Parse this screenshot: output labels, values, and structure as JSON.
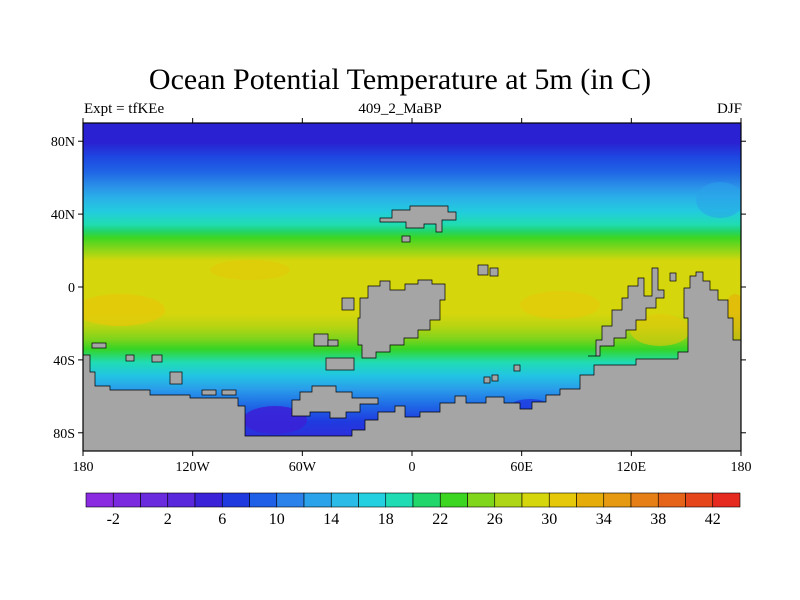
{
  "title": "Ocean Potential Temperature at 5m (in C)",
  "subtitle_left": "Expt = tfKEe",
  "subtitle_center": "409_2_MaBP",
  "subtitle_right": "DJF",
  "map": {
    "projection": "cylindrical-equidistant",
    "lon_range": [
      -180,
      180
    ],
    "lat_range": [
      -90,
      90
    ],
    "land_color": "#a5a5a5",
    "lat_ticks": [
      {
        "value": 80,
        "label": "80N"
      },
      {
        "value": 40,
        "label": "40N"
      },
      {
        "value": 0,
        "label": "0"
      },
      {
        "value": -40,
        "label": "40S"
      },
      {
        "value": -80,
        "label": "80S"
      }
    ],
    "lon_ticks": [
      {
        "value": -180,
        "label": "180"
      },
      {
        "value": -120,
        "label": "120W"
      },
      {
        "value": -60,
        "label": "60W"
      },
      {
        "value": 0,
        "label": "0"
      },
      {
        "value": 60,
        "label": "60E"
      },
      {
        "value": 120,
        "label": "120E"
      },
      {
        "value": 180,
        "label": "180"
      }
    ]
  },
  "colorbar": {
    "min": -4,
    "max": 44,
    "step": 2,
    "colors": [
      "#8a2be2",
      "#7b2ae0",
      "#6a2ade",
      "#5a28dc",
      "#3a22d8",
      "#1f3be0",
      "#1f5ee6",
      "#2a82ea",
      "#2aa3ea",
      "#2abbe6",
      "#22d0e0",
      "#20dcb4",
      "#21d66a",
      "#3cd620",
      "#7fd61a",
      "#aed614",
      "#d6d60c",
      "#e6c80a",
      "#e6ad0a",
      "#e69a12",
      "#e68016",
      "#e6641a",
      "#e6461c",
      "#e62a20"
    ],
    "labels": [
      {
        "value": -2,
        "text": "-2"
      },
      {
        "value": 2,
        "text": "2"
      },
      {
        "value": 6,
        "text": "6"
      },
      {
        "value": 10,
        "text": "10"
      },
      {
        "value": 14,
        "text": "14"
      },
      {
        "value": 18,
        "text": "18"
      },
      {
        "value": 22,
        "text": "22"
      },
      {
        "value": 26,
        "text": "26"
      },
      {
        "value": 30,
        "text": "30"
      },
      {
        "value": 34,
        "text": "34"
      },
      {
        "value": 38,
        "text": "38"
      },
      {
        "value": 42,
        "text": "42"
      }
    ]
  }
}
